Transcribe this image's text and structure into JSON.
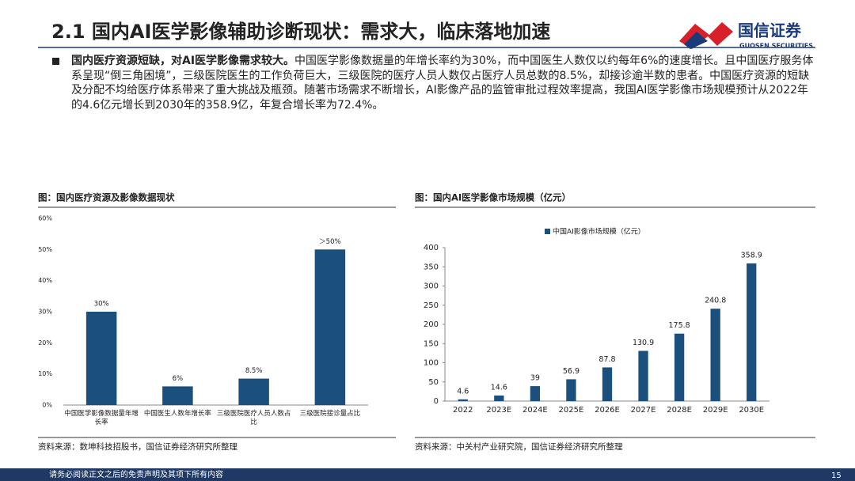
{
  "header": {
    "title": "2.1 国内AI医学影像辅助诊断现状：需求大，临床落地加速",
    "logo_cn": "国信证券",
    "logo_en": "GUOSEN SECURITIES"
  },
  "body": {
    "lead": "国内医疗资源短缺，对AI医学影像需求较大。",
    "text": "中国医学影像数据量的年增长率约为30%，而中国医生人数仅以约每年6%的速度增长。且中国医疗服务体系呈现“倒三角困境”，三级医院医生的工作负荷巨大，三级医院的医疗人员人数仅占医疗人员总数的8.5%，却接诊逾半数的患者。中国医疗资源的短缺及分配不均给医疗体系带来了重大挑战及瓶颈。随著市场需求不断增长，AI影像产品的监管审批过程效率提高，我国AI医学影像市场规模预计从2022年的4.6亿元增长到2030年的358.9亿，年复合增长率为72.4%。"
  },
  "chart_data": [
    {
      "type": "bar",
      "title": "图：国内医疗资源及影像数据现状",
      "categories": [
        "中国医学影像数据量年增长率",
        "中国医生人数年增长率",
        "三级医院医疗人员人数占比",
        "三级医院接诊量占比"
      ],
      "values": [
        30,
        6,
        8.5,
        50
      ],
      "value_labels": [
        "30%",
        "6%",
        "8.5%",
        "＞50%"
      ],
      "color": "#1b4f7d",
      "ylim": [
        0,
        60
      ],
      "yticks": [
        {
          "value": 0,
          "label": "0%"
        },
        {
          "value": 10,
          "label": "10%"
        },
        {
          "value": 20,
          "label": "20%"
        },
        {
          "value": 30,
          "label": "30%"
        },
        {
          "value": 40,
          "label": "40%"
        },
        {
          "value": 50,
          "label": "50%"
        },
        {
          "value": 60,
          "label": "60%"
        }
      ],
      "source": "资料来源：数坤科技招股书，国信证券经济研究所整理"
    },
    {
      "type": "bar",
      "title": "图：国内AI医学影像市场规模（亿元）",
      "categories": [
        "2022",
        "2023E",
        "2024E",
        "2025E",
        "2026E",
        "2027E",
        "2028E",
        "2029E",
        "2030E"
      ],
      "series": [
        {
          "name": "中国AI影像市场规模（亿元）",
          "color": "#1b4f7d",
          "values": [
            4.6,
            14.6,
            39,
            56.9,
            87.8,
            130.9,
            175.8,
            240.8,
            358.9
          ]
        }
      ],
      "ylim": [
        0,
        400
      ],
      "yticks": [
        0,
        50,
        100,
        150,
        200,
        250,
        300,
        350,
        400
      ],
      "source": "资料来源：中关村产业研究院，国信证券经济研究所整理"
    }
  ],
  "footer": {
    "disclaimer": "请务必阅读正文之后的免责声明及其项下所有内容",
    "page": "15"
  }
}
